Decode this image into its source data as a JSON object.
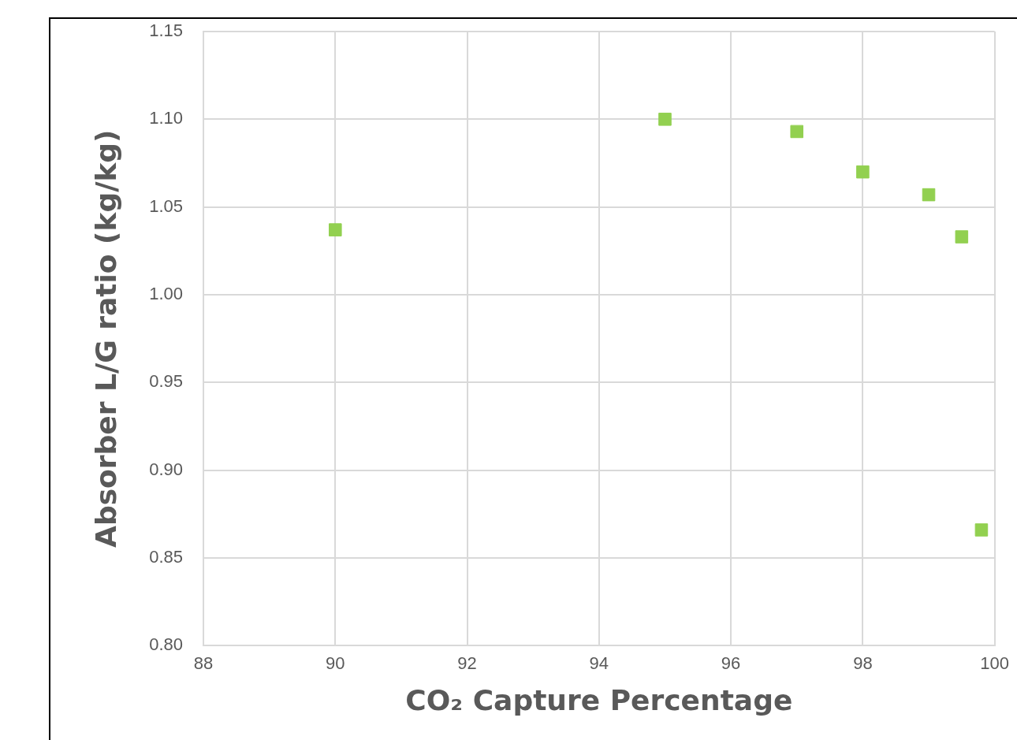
{
  "chart_data": {
    "type": "scatter",
    "xlabel": "CO₂ Capture Percentage",
    "ylabel": "Absorber L/G ratio (kg/kg)",
    "x": [
      90,
      95,
      97,
      98,
      99,
      99.5,
      99.8
    ],
    "series": [
      {
        "color": "#92d050",
        "values": [
          1.037,
          1.1,
          1.093,
          1.07,
          1.057,
          1.033,
          0.866
        ]
      }
    ],
    "xlim": [
      88,
      100
    ],
    "xticks": [
      88,
      90,
      92,
      94,
      96,
      98,
      100
    ],
    "ylim": [
      0.8,
      1.15
    ],
    "yticks": [
      {
        "value": 0.8,
        "label": "0.80"
      },
      {
        "value": 0.85,
        "label": "0.85"
      },
      {
        "value": 0.9,
        "label": "0.90"
      },
      {
        "value": 0.95,
        "label": "0.95"
      },
      {
        "value": 1.0,
        "label": "1.00"
      },
      {
        "value": 1.05,
        "label": "1.05"
      },
      {
        "value": 1.1,
        "label": "1.10"
      },
      {
        "value": 1.15,
        "label": "1.15"
      }
    ],
    "grid": true,
    "legend": false,
    "marker": "square"
  }
}
